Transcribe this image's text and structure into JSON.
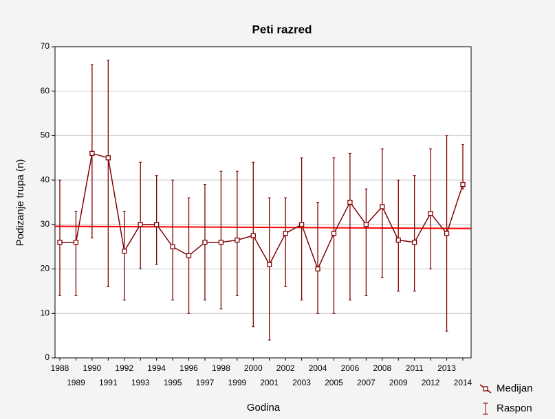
{
  "chart_data": {
    "type": "line",
    "title": "Peti razred",
    "x_label": "Godina",
    "y_label": "Podizanje trupa (n)",
    "categories": [
      "1988",
      "1989",
      "1990",
      "1991",
      "1992",
      "1993",
      "1994",
      "1995",
      "1996",
      "1997",
      "1998",
      "1999",
      "2000",
      "2001",
      "2002",
      "2003",
      "2004",
      "2005",
      "2006",
      "2007",
      "2008",
      "2009",
      "2011",
      "2012",
      "2013",
      "2014"
    ],
    "series": [
      {
        "name": "Medijan",
        "color": "#800000",
        "values": [
          26,
          26,
          46,
          45,
          24,
          30,
          30,
          25,
          23,
          26,
          26,
          26.5,
          27.5,
          21,
          28,
          30,
          20,
          28,
          35,
          30,
          34,
          26.5,
          26,
          32.5,
          28,
          39
        ]
      }
    ],
    "range": {
      "name": "Raspon",
      "color": "#800000",
      "low": [
        14,
        14,
        27,
        16,
        13,
        20,
        21,
        13,
        10,
        13,
        11,
        14,
        7,
        4,
        16,
        13,
        10,
        10,
        13,
        14,
        18,
        15,
        15,
        20,
        6,
        38
      ],
      "high": [
        40,
        33,
        66,
        67,
        33,
        44,
        41,
        40,
        36,
        39,
        42,
        42,
        44,
        36,
        36,
        45,
        35,
        45,
        46,
        38,
        47,
        40,
        41,
        47,
        50,
        48
      ]
    },
    "trend": {
      "color": "#ff0000",
      "values": [
        29.6,
        29.1
      ]
    },
    "ylim": [
      0,
      70
    ],
    "yticks": [
      0,
      10,
      20,
      30,
      40,
      50,
      60,
      70
    ],
    "grid": true
  }
}
